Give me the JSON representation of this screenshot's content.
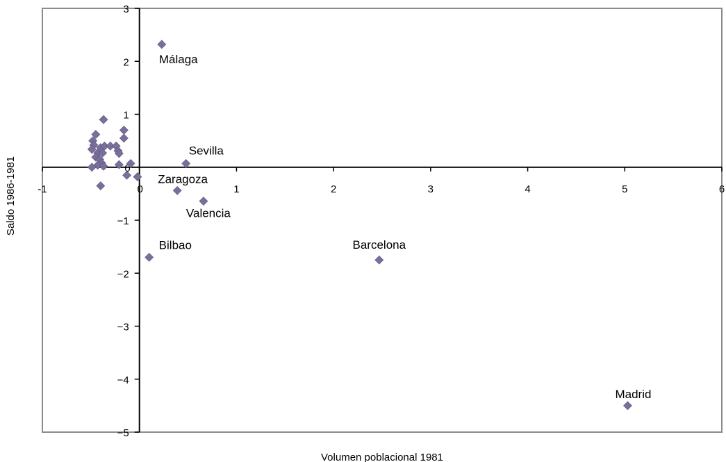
{
  "chart_data": {
    "type": "scatter",
    "title": "",
    "xlabel": "Volumen poblacional 1981",
    "ylabel": "Saldo 1986-1981",
    "xlim": [
      -1,
      6
    ],
    "ylim": [
      -5,
      3
    ],
    "x_ticks": [
      -1,
      1,
      2,
      3,
      4,
      5,
      6
    ],
    "y_ticks": [
      3,
      2,
      1,
      0,
      -1,
      -2,
      -3,
      -4,
      -5
    ],
    "origin_x_label": "0",
    "origin_y_label": "0",
    "grid": false,
    "legend": "none",
    "marker": "diamond",
    "marker_color": "#7a6f9b",
    "points": [
      {
        "x": 0.23,
        "y": 2.32,
        "label": "Málaga"
      },
      {
        "x": 0.48,
        "y": 0.07,
        "label": "Sevilla"
      },
      {
        "x": 0.39,
        "y": -0.44,
        "label": "Zaragoza"
      },
      {
        "x": 0.66,
        "y": -0.64,
        "label": "Valencia"
      },
      {
        "x": 0.1,
        "y": -1.7,
        "label": "Bilbao"
      },
      {
        "x": 2.47,
        "y": -1.75,
        "label": "Barcelona"
      },
      {
        "x": 5.03,
        "y": -4.5,
        "label": "Madrid"
      },
      {
        "x": -0.37,
        "y": 0.9,
        "label": ""
      },
      {
        "x": -0.16,
        "y": 0.7,
        "label": ""
      },
      {
        "x": -0.16,
        "y": 0.55,
        "label": ""
      },
      {
        "x": -0.45,
        "y": 0.62,
        "label": ""
      },
      {
        "x": -0.48,
        "y": 0.5,
        "label": ""
      },
      {
        "x": -0.47,
        "y": 0.42,
        "label": ""
      },
      {
        "x": -0.49,
        "y": 0.34,
        "label": ""
      },
      {
        "x": -0.4,
        "y": 0.37,
        "label": ""
      },
      {
        "x": -0.36,
        "y": 0.4,
        "label": ""
      },
      {
        "x": -0.3,
        "y": 0.4,
        "label": ""
      },
      {
        "x": -0.24,
        "y": 0.4,
        "label": ""
      },
      {
        "x": -0.22,
        "y": 0.31,
        "label": ""
      },
      {
        "x": -0.21,
        "y": 0.26,
        "label": ""
      },
      {
        "x": -0.43,
        "y": 0.27,
        "label": ""
      },
      {
        "x": -0.38,
        "y": 0.27,
        "label": ""
      },
      {
        "x": -0.45,
        "y": 0.19,
        "label": ""
      },
      {
        "x": -0.41,
        "y": 0.15,
        "label": ""
      },
      {
        "x": -0.39,
        "y": 0.08,
        "label": ""
      },
      {
        "x": -0.43,
        "y": 0.04,
        "label": ""
      },
      {
        "x": -0.37,
        "y": 0.02,
        "label": ""
      },
      {
        "x": -0.49,
        "y": 0.0,
        "label": ""
      },
      {
        "x": -0.21,
        "y": 0.05,
        "label": ""
      },
      {
        "x": -0.09,
        "y": 0.07,
        "label": ""
      },
      {
        "x": -0.13,
        "y": -0.15,
        "label": ""
      },
      {
        "x": -0.02,
        "y": -0.18,
        "label": ""
      },
      {
        "x": -0.4,
        "y": -0.35,
        "label": ""
      }
    ]
  }
}
